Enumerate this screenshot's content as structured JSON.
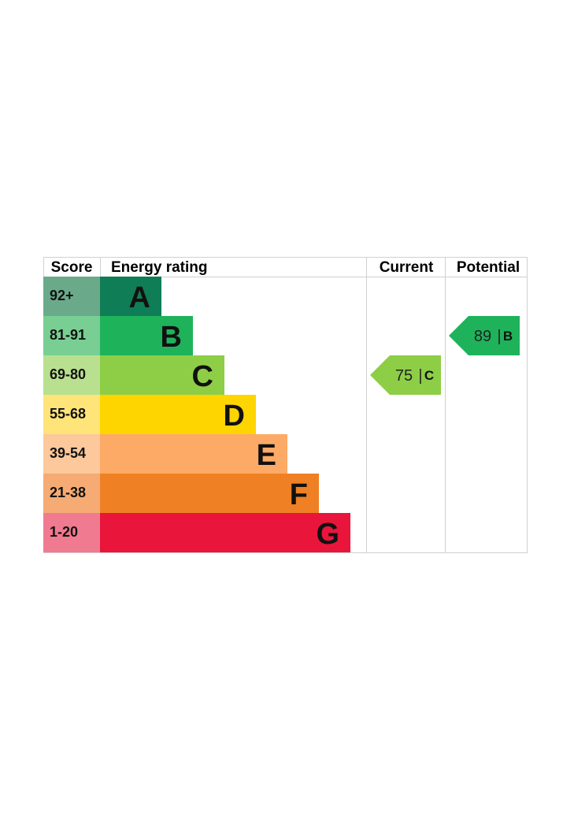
{
  "chart_data": {
    "type": "table",
    "headers": {
      "score": "Score",
      "rating": "Energy rating",
      "current": "Current",
      "potential": "Potential"
    },
    "bands": [
      {
        "letter": "A",
        "range": "92+",
        "color": "#0f7d55",
        "score_bg": "#6aaa8b"
      },
      {
        "letter": "B",
        "range": "81-91",
        "color": "#1eb35a",
        "score_bg": "#79cf93"
      },
      {
        "letter": "C",
        "range": "69-80",
        "color": "#8dce46",
        "score_bg": "#b9e08f"
      },
      {
        "letter": "D",
        "range": "55-68",
        "color": "#ffd500",
        "score_bg": "#ffe47a"
      },
      {
        "letter": "E",
        "range": "39-54",
        "color": "#fcaa65",
        "score_bg": "#fdc89b"
      },
      {
        "letter": "F",
        "range": "21-38",
        "color": "#ef8023",
        "score_bg": "#f5ab73"
      },
      {
        "letter": "G",
        "range": "1-20",
        "color": "#e9153b",
        "score_bg": "#f07a90"
      }
    ],
    "current": {
      "value": 75,
      "letter": "C",
      "sep": "|",
      "color": "#8dce46"
    },
    "potential": {
      "value": 89,
      "letter": "B",
      "sep": "|",
      "color": "#1eb35a"
    }
  }
}
